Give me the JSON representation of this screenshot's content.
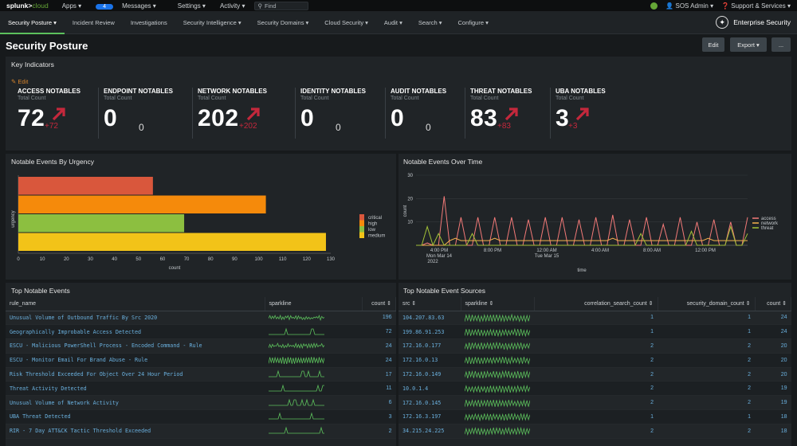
{
  "topbar": {
    "logo_main": "splunk>",
    "logo_sub": "cloud",
    "menus": [
      "Apps ▾",
      "Messages ▾",
      "Settings ▾",
      "Activity ▾"
    ],
    "messages_count": "4",
    "find_placeholder": "Find",
    "user": "SOS Admin ▾",
    "support": "Support & Services ▾"
  },
  "appbar": {
    "tabs": [
      "Security Posture ▾",
      "Incident Review",
      "Investigations",
      "Security Intelligence ▾",
      "Security Domains ▾",
      "Cloud Security ▾",
      "Audit ▾",
      "Search ▾",
      "Configure ▾"
    ],
    "app_name": "Enterprise Security"
  },
  "page": {
    "title": "Security Posture",
    "edit_label": "Edit",
    "export_label": "Export ▾",
    "more_label": "...",
    "key_indicators": "Key Indicators",
    "kpi_edit": "✎ Edit"
  },
  "kpis": [
    {
      "title": "ACCESS NOTABLES",
      "sub": "Total Count",
      "value": "72",
      "delta": "+72",
      "up": true
    },
    {
      "title": "ENDPOINT NOTABLES",
      "sub": "Total Count",
      "value": "0",
      "delta": "0",
      "up": false
    },
    {
      "title": "NETWORK NOTABLES",
      "sub": "Total Count",
      "value": "202",
      "delta": "+202",
      "up": true
    },
    {
      "title": "IDENTITY NOTABLES",
      "sub": "Total Count",
      "value": "0",
      "delta": "0",
      "up": false
    },
    {
      "title": "AUDIT NOTABLES",
      "sub": "Total Count",
      "value": "0",
      "delta": "0",
      "up": false
    },
    {
      "title": "THREAT NOTABLES",
      "sub": "Total Count",
      "value": "83",
      "delta": "+83",
      "up": true
    },
    {
      "title": "UBA NOTABLES",
      "sub": "Total Count",
      "value": "3",
      "delta": "+3",
      "up": true
    }
  ],
  "colors": {
    "accent": "#65a637",
    "up_red": "#c4283c",
    "link": "#6ab0de",
    "critical": "#d9573c",
    "high": "#f58a0b",
    "low": "#8cbf40",
    "medium": "#f2c318",
    "access": "#f47a78",
    "network": "#f5b14e",
    "threat": "#a2c137"
  },
  "chart_data": [
    {
      "type": "bar",
      "title": "Notable Events By Urgency",
      "xlabel": "count",
      "ylabel": "urgency",
      "categories": [
        "critical",
        "high",
        "low",
        "medium"
      ],
      "values": [
        56,
        103,
        69,
        128
      ],
      "xlim": [
        0,
        130
      ],
      "xticks": [
        "0",
        "10",
        "20",
        "30",
        "40",
        "50",
        "60",
        "70",
        "80",
        "90",
        "100",
        "110",
        "120",
        "130"
      ],
      "legend": [
        "critical",
        "high",
        "low",
        "medium"
      ],
      "legend_position": "right"
    },
    {
      "type": "line",
      "title": "Notable Events Over Time",
      "xlabel": "time",
      "ylabel": "count",
      "ylim": [
        0,
        30
      ],
      "yticks": [
        "30",
        "20",
        "10"
      ],
      "xticks": [
        {
          "label": "4:00 PM",
          "sub": "Mon Mar 14",
          "sub2": "2022"
        },
        {
          "label": "8:00 PM"
        },
        {
          "label": "12:00 AM",
          "sub": "Tue Mar 15"
        },
        {
          "label": "4:00 AM"
        },
        {
          "label": "8:00 AM"
        },
        {
          "label": "12:00 PM"
        }
      ],
      "legend_position": "right",
      "series": [
        {
          "name": "access",
          "values": [
            0,
            0,
            1,
            0,
            0,
            21,
            0,
            0,
            12,
            0,
            0,
            12,
            0,
            0,
            12,
            0,
            0,
            12,
            0,
            0,
            11,
            0,
            0,
            12,
            0,
            0,
            12,
            0,
            0,
            11,
            0,
            0,
            12,
            0,
            0,
            13,
            0,
            0,
            11,
            0,
            0,
            12,
            0,
            0,
            9,
            0,
            0,
            12,
            0,
            0,
            10,
            0,
            0,
            11,
            0,
            0,
            10,
            0,
            0,
            12
          ]
        },
        {
          "name": "network",
          "values": [
            0,
            0,
            0,
            0,
            0,
            0,
            2,
            3,
            2,
            2,
            2,
            2,
            2,
            2,
            3,
            2,
            2,
            2,
            2,
            2,
            2,
            2,
            2,
            2,
            2,
            2,
            2,
            2,
            2,
            2,
            2,
            2,
            2,
            2,
            2,
            3,
            2,
            2,
            2,
            2,
            2,
            2,
            2,
            2,
            2,
            2,
            2,
            2,
            2,
            2,
            2,
            2,
            3,
            2,
            2,
            2,
            2,
            2,
            2,
            2
          ]
        },
        {
          "name": "threat",
          "values": [
            0,
            0,
            8,
            0,
            5,
            0,
            0,
            0,
            0,
            0,
            5,
            0,
            0,
            0,
            0,
            0,
            0,
            0,
            0,
            0,
            0,
            0,
            0,
            0,
            0,
            0,
            0,
            0,
            0,
            0,
            0,
            0,
            0,
            0,
            0,
            0,
            0,
            0,
            0,
            0,
            5,
            0,
            0,
            0,
            0,
            0,
            0,
            0,
            0,
            6,
            0,
            0,
            0,
            0,
            0,
            0,
            8,
            0,
            0,
            5
          ]
        }
      ]
    }
  ],
  "top_events": {
    "title": "Top Notable Events",
    "headers": [
      "rule_name",
      "sparkline",
      "count ⇕"
    ],
    "rows": [
      {
        "name": "Unusual Volume of Outbound Traffic By Src 2020",
        "count": "196"
      },
      {
        "name": "Geographically Improbable Access Detected",
        "count": "72"
      },
      {
        "name": "ESCU - Malicious PowerShell Process - Encoded Command - Rule",
        "count": "24"
      },
      {
        "name": "ESCU - Monitor Email For Brand Abuse - Rule",
        "count": "24"
      },
      {
        "name": "Risk Threshold Exceeded For Object Over 24 Hour Period",
        "count": "17"
      },
      {
        "name": "Threat Activity Detected",
        "count": "11"
      },
      {
        "name": "Unusual Volume of Network Activity",
        "count": "6"
      },
      {
        "name": "UBA Threat Detected",
        "count": "3"
      },
      {
        "name": "RIR - 7 Day ATT&CK Tactic Threshold Exceeded",
        "count": "2"
      }
    ]
  },
  "top_sources": {
    "title": "Top Notable Event Sources",
    "headers": [
      "src ⇕",
      "sparkline ⇕",
      "correlation_search_count ⇕",
      "security_domain_count ⇕",
      "count ⇕"
    ],
    "rows": [
      {
        "src": "104.207.83.63",
        "corr": "1",
        "dom": "1",
        "count": "24"
      },
      {
        "src": "199.86.91.253",
        "corr": "1",
        "dom": "1",
        "count": "24"
      },
      {
        "src": "172.16.0.177",
        "corr": "2",
        "dom": "2",
        "count": "20"
      },
      {
        "src": "172.16.0.13",
        "corr": "2",
        "dom": "2",
        "count": "20"
      },
      {
        "src": "172.16.0.149",
        "corr": "2",
        "dom": "2",
        "count": "20"
      },
      {
        "src": "10.0.1.4",
        "corr": "2",
        "dom": "2",
        "count": "19"
      },
      {
        "src": "172.16.0.145",
        "corr": "2",
        "dom": "2",
        "count": "19"
      },
      {
        "src": "172.16.3.197",
        "corr": "1",
        "dom": "1",
        "count": "18"
      },
      {
        "src": "34.215.24.225",
        "corr": "2",
        "dom": "2",
        "count": "18"
      }
    ]
  }
}
